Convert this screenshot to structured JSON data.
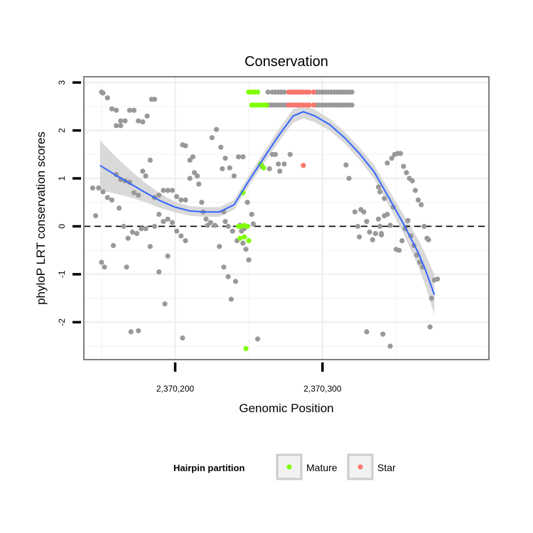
{
  "chart_data": {
    "type": "scatter",
    "title": "Conservation",
    "xlabel": "Genomic Position",
    "ylabel": "phyloP LRT conservation scores",
    "xlim": [
      2370138,
      2370413
    ],
    "ylim": [
      -2.78,
      3.12
    ],
    "x_ticks": [
      {
        "value": 2370200,
        "label": "2,370,200"
      },
      {
        "value": 2370300,
        "label": "2,370,300"
      }
    ],
    "y_ticks": [
      {
        "value": -2,
        "label": "-2"
      },
      {
        "value": -1,
        "label": "-1"
      },
      {
        "value": 0,
        "label": "0"
      },
      {
        "value": 1,
        "label": "1"
      },
      {
        "value": 2,
        "label": "2"
      },
      {
        "value": 3,
        "label": "3"
      }
    ],
    "grid": true,
    "reference_line": {
      "y": 0,
      "style": "dashed"
    },
    "colors": {
      "other": "#999999",
      "Mature": "#7FFF00",
      "Star": "#F8766D",
      "smooth": "#3366FF",
      "ribbon": "#CCCCCC",
      "panel_border": "#7F7F7F"
    },
    "legend": {
      "title": "Hairpin partition",
      "position": "bottom",
      "entries": [
        {
          "label": "Mature",
          "color": "#7FFF00"
        },
        {
          "label": "Star",
          "color": "#F8766D"
        }
      ]
    },
    "series": [
      {
        "color": "#999999",
        "points": [
          [
            2370150,
            2.8
          ],
          [
            2370151,
            2.78
          ],
          [
            2370154,
            2.68
          ],
          [
            2370157,
            2.45
          ],
          [
            2370160,
            2.1
          ],
          [
            2370163,
            2.1
          ],
          [
            2370160,
            2.42
          ],
          [
            2370163,
            2.2
          ],
          [
            2370166,
            2.2
          ],
          [
            2370169,
            2.42
          ],
          [
            2370172,
            2.42
          ],
          [
            2370175,
            2.2
          ],
          [
            2370178,
            2.18
          ],
          [
            2370181,
            2.3
          ],
          [
            2370184,
            2.65
          ],
          [
            2370186,
            2.65
          ],
          [
            2370144,
            0.8
          ],
          [
            2370148,
            0.8
          ],
          [
            2370151,
            0.72
          ],
          [
            2370154,
            0.6
          ],
          [
            2370157,
            0.55
          ],
          [
            2370160,
            1.08
          ],
          [
            2370163,
            0.98
          ],
          [
            2370166,
            0.95
          ],
          [
            2370169,
            0.92
          ],
          [
            2370172,
            0.7
          ],
          [
            2370175,
            0.65
          ],
          [
            2370178,
            1.15
          ],
          [
            2370180,
            1.05
          ],
          [
            2370183,
            1.38
          ],
          [
            2370186,
            0.6
          ],
          [
            2370189,
            0.65
          ],
          [
            2370192,
            0.75
          ],
          [
            2370195,
            0.75
          ],
          [
            2370198,
            0.75
          ],
          [
            2370201,
            0.62
          ],
          [
            2370204,
            0.55
          ],
          [
            2370207,
            0.55
          ],
          [
            2370146,
            0.22
          ],
          [
            2370150,
            -0.75
          ],
          [
            2370152,
            -0.85
          ],
          [
            2370158,
            -0.4
          ],
          [
            2370162,
            0.38
          ],
          [
            2370165,
            0.0
          ],
          [
            2370168,
            -0.25
          ],
          [
            2370171,
            -0.12
          ],
          [
            2370174,
            -0.15
          ],
          [
            2370177,
            -0.05
          ],
          [
            2370180,
            -0.05
          ],
          [
            2370183,
            -0.42
          ],
          [
            2370186,
            0.0
          ],
          [
            2370189,
            0.25
          ],
          [
            2370192,
            0.1
          ],
          [
            2370195,
            0.15
          ],
          [
            2370198,
            0.08
          ],
          [
            2370201,
            -0.1
          ],
          [
            2370204,
            -0.2
          ],
          [
            2370207,
            -0.3
          ],
          [
            2370167,
            -0.85
          ],
          [
            2370170,
            -2.2
          ],
          [
            2370175,
            -2.18
          ],
          [
            2370189,
            -0.95
          ],
          [
            2370193,
            -1.62
          ],
          [
            2370195,
            -0.62
          ],
          [
            2370205,
            -2.33
          ],
          [
            2370205,
            1.7
          ],
          [
            2370207,
            1.68
          ],
          [
            2370210,
            1.38
          ],
          [
            2370212,
            1.45
          ],
          [
            2370215,
            1.05
          ],
          [
            2370218,
            0.5
          ],
          [
            2370221,
            0.15
          ],
          [
            2370224,
            0.08
          ],
          [
            2370227,
            0.02
          ],
          [
            2370230,
            -0.42
          ],
          [
            2370233,
            -0.85
          ],
          [
            2370236,
            -1.05
          ],
          [
            2370238,
            -1.52
          ],
          [
            2370241,
            -1.15
          ],
          [
            2370244,
            0.02
          ],
          [
            2370246,
            -0.35
          ],
          [
            2370248,
            -0.48
          ],
          [
            2370250,
            -0.7
          ],
          [
            2370253,
            0.05
          ],
          [
            2370256,
            -2.35
          ],
          [
            2370225,
            1.85
          ],
          [
            2370228,
            2.02
          ],
          [
            2370231,
            1.65
          ],
          [
            2370234,
            1.42
          ],
          [
            2370237,
            1.22
          ],
          [
            2370240,
            1.05
          ],
          [
            2370243,
            1.45
          ],
          [
            2370246,
            1.45
          ],
          [
            2370249,
            0.5
          ],
          [
            2370252,
            0.25
          ],
          [
            2370210,
            1.0
          ],
          [
            2370213,
            1.12
          ],
          [
            2370216,
            0.88
          ],
          [
            2370219,
            0.3
          ],
          [
            2370222,
            0.02
          ],
          [
            2370232,
            1.2
          ],
          [
            2370233,
            0.3
          ],
          [
            2370234,
            0.1
          ],
          [
            2370236,
            0.0
          ],
          [
            2370239,
            -0.1
          ],
          [
            2370242,
            -0.3
          ],
          [
            2370245,
            -0.1
          ],
          [
            2370247,
            -0.05
          ],
          [
            2370259,
            1.25
          ],
          [
            2370264,
            1.2
          ],
          [
            2370266,
            1.5
          ],
          [
            2370268,
            1.5
          ],
          [
            2370270,
            1.3
          ],
          [
            2370271,
            1.15
          ],
          [
            2370274,
            1.3
          ],
          [
            2370278,
            1.5
          ],
          [
            2370263,
            2.8
          ],
          [
            2370266,
            2.8
          ],
          [
            2370268,
            2.8
          ],
          [
            2370270,
            2.8
          ],
          [
            2370272,
            2.8
          ],
          [
            2370274,
            2.8
          ],
          [
            2370296,
            2.8
          ],
          [
            2370298,
            2.8
          ],
          [
            2370300,
            2.8
          ],
          [
            2370302,
            2.8
          ],
          [
            2370304,
            2.8
          ],
          [
            2370306,
            2.8
          ],
          [
            2370308,
            2.8
          ],
          [
            2370310,
            2.8
          ],
          [
            2370312,
            2.8
          ],
          [
            2370314,
            2.8
          ],
          [
            2370316,
            2.8
          ],
          [
            2370318,
            2.8
          ],
          [
            2370320,
            2.8
          ],
          [
            2370263,
            2.53
          ],
          [
            2370265,
            2.53
          ],
          [
            2370267,
            2.53
          ],
          [
            2370269,
            2.53
          ],
          [
            2370271,
            2.53
          ],
          [
            2370273,
            2.53
          ],
          [
            2370275,
            2.53
          ],
          [
            2370296,
            2.53
          ],
          [
            2370298,
            2.53
          ],
          [
            2370300,
            2.53
          ],
          [
            2370302,
            2.53
          ],
          [
            2370304,
            2.53
          ],
          [
            2370306,
            2.53
          ],
          [
            2370308,
            2.53
          ],
          [
            2370310,
            2.53
          ],
          [
            2370312,
            2.53
          ],
          [
            2370314,
            2.53
          ],
          [
            2370316,
            2.53
          ],
          [
            2370318,
            2.53
          ],
          [
            2370320,
            2.53
          ],
          [
            2370316,
            1.28
          ],
          [
            2370318,
            1.0
          ],
          [
            2370322,
            0.3
          ],
          [
            2370324,
            0.0
          ],
          [
            2370325,
            -0.22
          ],
          [
            2370326,
            0.35
          ],
          [
            2370328,
            0.3
          ],
          [
            2370330,
            0.1
          ],
          [
            2370332,
            -0.12
          ],
          [
            2370334,
            -0.28
          ],
          [
            2370336,
            -0.15
          ],
          [
            2370338,
            0.15
          ],
          [
            2370340,
            -0.15
          ],
          [
            2370342,
            0.22
          ],
          [
            2370344,
            0.25
          ],
          [
            2370346,
            0.02
          ],
          [
            2370348,
            0.4
          ],
          [
            2370330,
            -2.2
          ],
          [
            2370341,
            -2.25
          ],
          [
            2370346,
            -2.5
          ],
          [
            2370339,
            0.72
          ],
          [
            2370338,
            0.82
          ],
          [
            2370342,
            0.58
          ],
          [
            2370344,
            1.32
          ],
          [
            2370347,
            1.42
          ],
          [
            2370349,
            1.5
          ],
          [
            2370351,
            1.52
          ],
          [
            2370353,
            1.52
          ],
          [
            2370355,
            1.25
          ],
          [
            2370357,
            1.12
          ],
          [
            2370359,
            1.0
          ],
          [
            2370361,
            0.95
          ],
          [
            2370363,
            0.75
          ],
          [
            2370365,
            0.55
          ],
          [
            2370367,
            0.45
          ],
          [
            2370350,
            -0.48
          ],
          [
            2370352,
            -0.5
          ],
          [
            2370354,
            -0.3
          ],
          [
            2370356,
            -0.05
          ],
          [
            2370358,
            0.12
          ],
          [
            2370360,
            -0.2
          ],
          [
            2370362,
            -0.4
          ],
          [
            2370364,
            -0.6
          ],
          [
            2370366,
            -0.75
          ],
          [
            2370368,
            -0.85
          ],
          [
            2370369,
            0.0
          ],
          [
            2370371,
            -0.25
          ],
          [
            2370372,
            -0.28
          ],
          [
            2370373,
            -2.1
          ],
          [
            2370374,
            -1.5
          ],
          [
            2370376,
            -1.12
          ],
          [
            2370378,
            -1.1
          ],
          [
            2370339,
            0.0
          ],
          [
            2370340,
            -0.18
          ]
        ]
      },
      {
        "name": "Mature",
        "color": "#7FFF00",
        "points": [
          [
            2370243,
            0.0
          ],
          [
            2370245,
            0.0
          ],
          [
            2370247,
            0.02
          ],
          [
            2370249,
            0.0
          ],
          [
            2370244,
            -0.25
          ],
          [
            2370247,
            -0.22
          ],
          [
            2370250,
            -0.3
          ],
          [
            2370246,
            0.7
          ],
          [
            2370248,
            -2.55
          ],
          [
            2370258,
            1.3
          ],
          [
            2370260,
            1.22
          ],
          [
            2370250,
            2.8
          ],
          [
            2370252,
            2.8
          ],
          [
            2370254,
            2.8
          ],
          [
            2370256,
            2.8
          ],
          [
            2370252,
            2.53
          ],
          [
            2370254,
            2.53
          ],
          [
            2370256,
            2.53
          ],
          [
            2370258,
            2.53
          ],
          [
            2370260,
            2.53
          ],
          [
            2370262,
            2.53
          ]
        ]
      },
      {
        "name": "Star",
        "color": "#F8766D",
        "points": [
          [
            2370277,
            2.8
          ],
          [
            2370279,
            2.8
          ],
          [
            2370281,
            2.8
          ],
          [
            2370283,
            2.8
          ],
          [
            2370285,
            2.8
          ],
          [
            2370287,
            2.8
          ],
          [
            2370289,
            2.8
          ],
          [
            2370291,
            2.8
          ],
          [
            2370294,
            2.8
          ],
          [
            2370277,
            2.53
          ],
          [
            2370279,
            2.53
          ],
          [
            2370281,
            2.53
          ],
          [
            2370283,
            2.53
          ],
          [
            2370285,
            2.53
          ],
          [
            2370287,
            2.53
          ],
          [
            2370289,
            2.53
          ],
          [
            2370291,
            2.53
          ],
          [
            2370294,
            2.53
          ],
          [
            2370287,
            1.27
          ]
        ]
      }
    ],
    "smooth": {
      "x": [
        2370149,
        2370160,
        2370170,
        2370180,
        2370190,
        2370200,
        2370210,
        2370220,
        2370230,
        2370240,
        2370250,
        2370260,
        2370270,
        2370280,
        2370287,
        2370295,
        2370305,
        2370315,
        2370325,
        2370335,
        2370345,
        2370355,
        2370365,
        2370370,
        2370376
      ],
      "y": [
        1.27,
        1.06,
        0.88,
        0.7,
        0.53,
        0.4,
        0.32,
        0.3,
        0.3,
        0.45,
        0.95,
        1.42,
        1.88,
        2.3,
        2.39,
        2.3,
        2.12,
        1.85,
        1.52,
        1.14,
        0.6,
        0.05,
        -0.55,
        -0.92,
        -1.43
      ],
      "band": [
        0.52,
        0.38,
        0.28,
        0.2,
        0.15,
        0.11,
        0.1,
        0.1,
        0.1,
        0.1,
        0.11,
        0.12,
        0.13,
        0.14,
        0.14,
        0.13,
        0.12,
        0.12,
        0.13,
        0.14,
        0.16,
        0.2,
        0.28,
        0.33,
        0.42
      ]
    }
  }
}
